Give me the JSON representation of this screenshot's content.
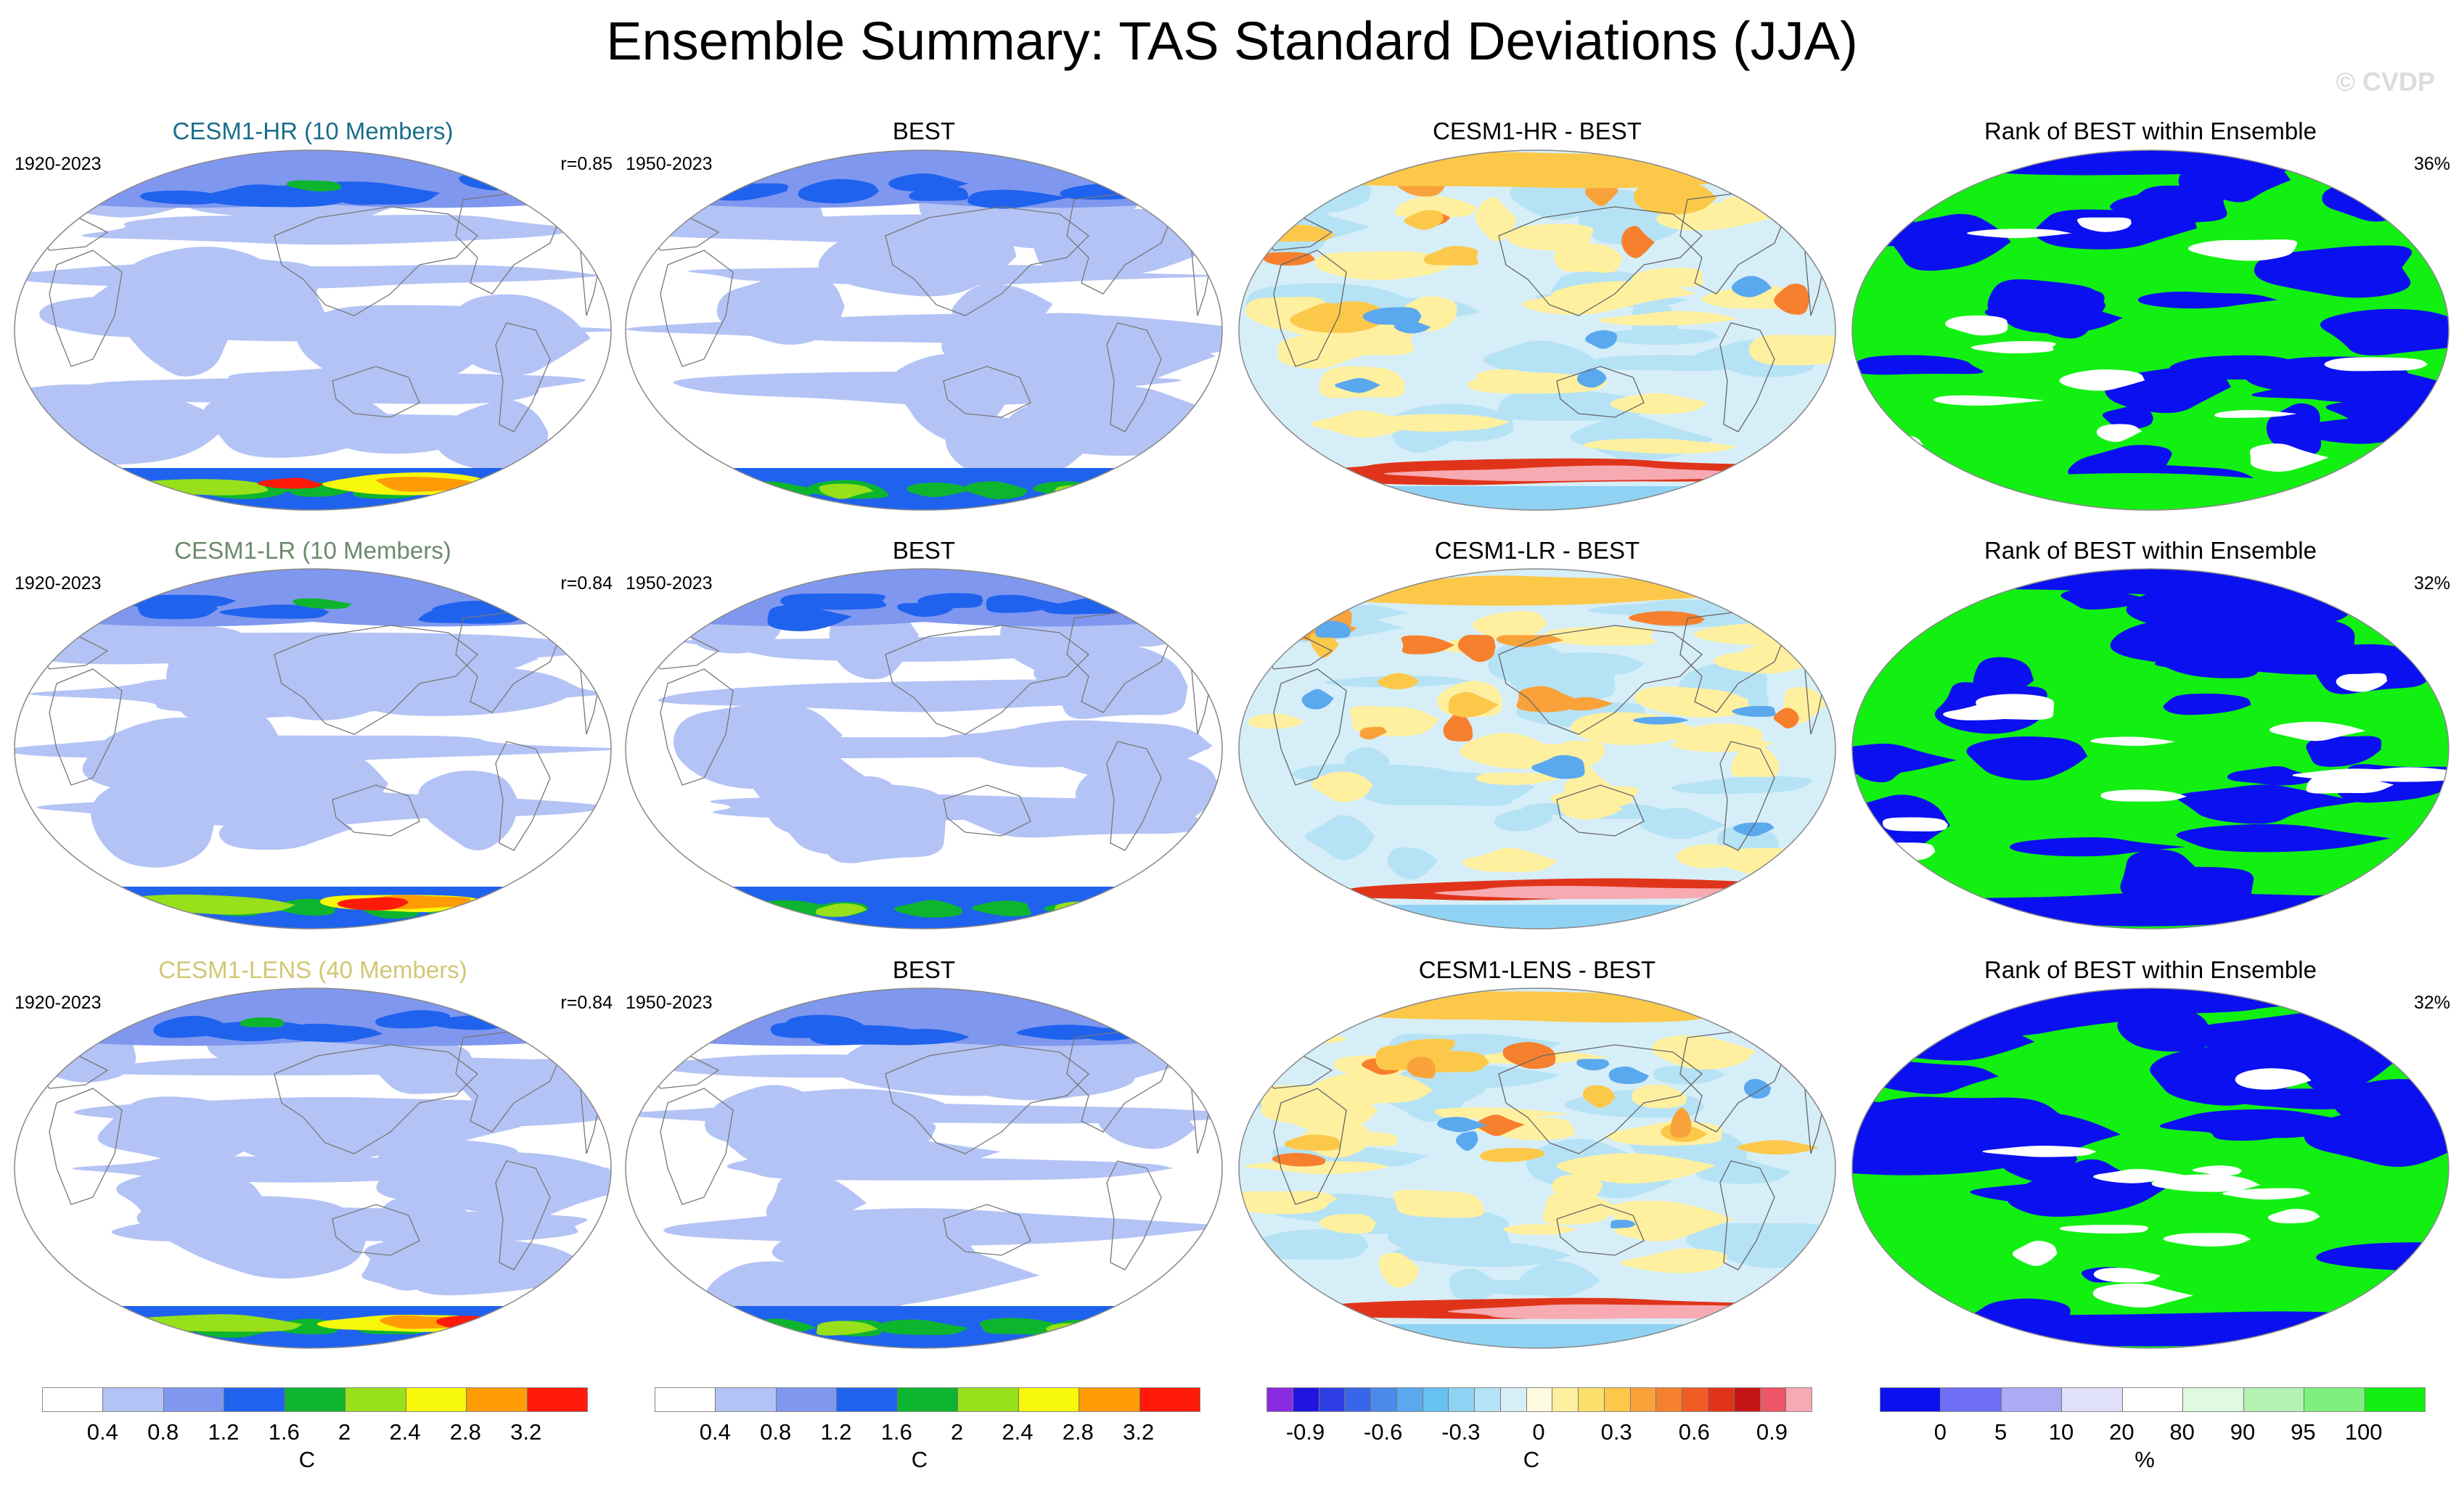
{
  "title": "Ensemble Summary: TAS Standard Deviations (JJA)",
  "watermark": "© CVDP",
  "colors": {
    "model_hr": "#1a6e8a",
    "model_lr": "#6b8a6b",
    "model_lens": "#d2c774"
  },
  "rows": [
    {
      "model": {
        "title": "CESM1-HR (10 Members)",
        "period": "1920-2023",
        "r": "r=0.85"
      },
      "obs": {
        "title": "BEST",
        "period": "1950-2023"
      },
      "diff": {
        "title": "CESM1-HR - BEST"
      },
      "rank": {
        "title": "Rank of BEST within Ensemble",
        "pct": "36%"
      }
    },
    {
      "model": {
        "title": "CESM1-LR (10 Members)",
        "period": "1920-2023",
        "r": "r=0.84"
      },
      "obs": {
        "title": "BEST",
        "period": "1950-2023"
      },
      "diff": {
        "title": "CESM1-LR - BEST"
      },
      "rank": {
        "title": "Rank of BEST within Ensemble",
        "pct": "32%"
      }
    },
    {
      "model": {
        "title": "CESM1-LENS (40 Members)",
        "period": "1920-2023",
        "r": "r=0.84"
      },
      "obs": {
        "title": "BEST",
        "period": "1950-2023"
      },
      "diff": {
        "title": "CESM1-LENS - BEST"
      },
      "rank": {
        "title": "Rank of BEST within Ensemble",
        "pct": "32%"
      }
    }
  ],
  "chart_data": [
    {
      "type": "heatmap",
      "name": "model/obs standard deviation",
      "units": "C",
      "levels": [
        0.4,
        0.8,
        1.2,
        1.6,
        2,
        2.4,
        2.8,
        3.2
      ],
      "tick_labels": [
        "0.4",
        "0.8",
        "1.2",
        "1.6",
        "2",
        "2.4",
        "2.8",
        "3.2"
      ],
      "colors": [
        "#ffffff",
        "#b4c3f5",
        "#7f97ee",
        "#1f62ee",
        "#0db52e",
        "#97e01a",
        "#f7f70a",
        "#ff9c05",
        "#ff1a0a"
      ]
    },
    {
      "type": "heatmap",
      "name": "difference (model - BEST)",
      "units": "C",
      "levels": [
        -1.0,
        -0.9,
        -0.8,
        -0.7,
        -0.6,
        -0.5,
        -0.4,
        -0.3,
        -0.2,
        -0.1,
        0,
        0.1,
        0.2,
        0.3,
        0.4,
        0.5,
        0.6,
        0.7,
        0.8,
        0.9,
        1.0
      ],
      "tick_labels": [
        "-0.9",
        "-0.6",
        "-0.3",
        "0",
        "0.3",
        "0.6",
        "0.9"
      ],
      "tick_values": [
        -0.9,
        -0.6,
        -0.3,
        0,
        0.3,
        0.6,
        0.9
      ],
      "colors": [
        "#8a2be2",
        "#2214e0",
        "#2f3fe6",
        "#3866e8",
        "#4a8ae9",
        "#5aa8ee",
        "#67c1f2",
        "#8fd2f4",
        "#b6e2f5",
        "#d6eef8",
        "#fffbe0",
        "#fff0a0",
        "#fde06a",
        "#fcc84a",
        "#f9a23a",
        "#f6802e",
        "#f15c24",
        "#e0341a",
        "#c41414",
        "#ee5566",
        "#f7aab2"
      ]
    },
    {
      "type": "heatmap",
      "name": "rank of BEST within ensemble",
      "units": "%",
      "levels": [
        0,
        5,
        10,
        20,
        80,
        90,
        95,
        100
      ],
      "tick_labels": [
        "0",
        "5",
        "10",
        "20",
        "80",
        "90",
        "95",
        "100"
      ],
      "colors": [
        "#0a10f0",
        "#6e6ef5",
        "#aaaaf5",
        "#e0e0fb",
        "#ffffff",
        "#e0fae0",
        "#b4f2b4",
        "#7ef07e",
        "#12f012"
      ]
    }
  ],
  "colorbars": [
    {
      "ticks": [
        "0.4",
        "0.8",
        "1.2",
        "1.6",
        "2",
        "2.4",
        "2.8",
        "3.2"
      ],
      "unit": "C"
    },
    {
      "ticks": [
        "0.4",
        "0.8",
        "1.2",
        "1.6",
        "2",
        "2.4",
        "2.8",
        "3.2"
      ],
      "unit": "C"
    },
    {
      "ticks": [
        "-0.9",
        "-0.6",
        "-0.3",
        "0",
        "0.3",
        "0.6",
        "0.9"
      ],
      "unit": "C"
    },
    {
      "ticks": [
        "0",
        "5",
        "10",
        "20",
        "80",
        "90",
        "95",
        "100"
      ],
      "unit": "%"
    }
  ]
}
